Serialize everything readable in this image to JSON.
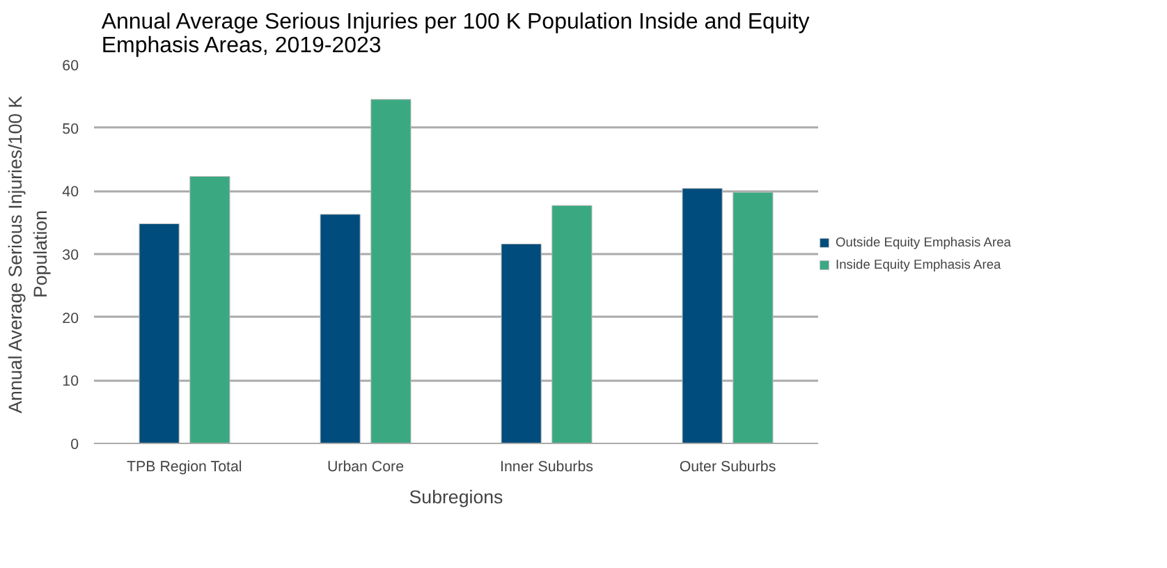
{
  "chart_data": {
    "type": "bar",
    "title": "Annual Average Serious Injuries per 100 K Population Inside and Equity Emphasis Areas, 2019-2023",
    "xlabel": "Subregions",
    "ylabel": "Annual Average Serious Injuries/100 K Population",
    "categories": [
      "TPB Region Total",
      "Urban Core",
      "Inner Suburbs",
      "Outer Suburbs"
    ],
    "series": [
      {
        "name": "Outside Equity Emphasis Area",
        "color": "#004c7c",
        "values": [
          34.8,
          36.3,
          31.6,
          40.4
        ]
      },
      {
        "name": "Inside Equity Emphasis Area",
        "color": "#3aa981",
        "values": [
          42.3,
          54.5,
          37.7,
          39.8
        ]
      }
    ],
    "ylim": [
      0,
      60
    ],
    "yticks": [
      0,
      10,
      20,
      30,
      40,
      50,
      60
    ],
    "grid": "y",
    "legend": "right"
  }
}
